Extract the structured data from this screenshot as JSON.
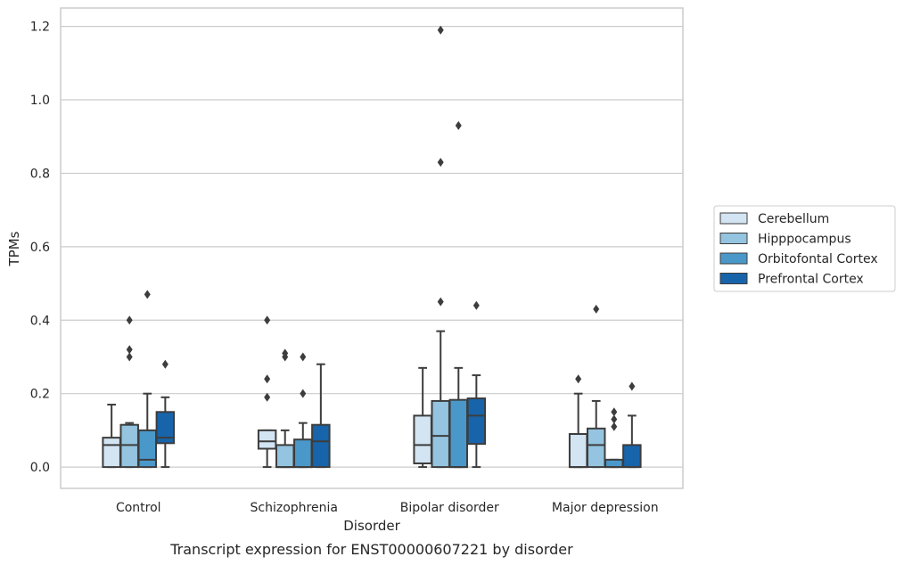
{
  "chart_data": {
    "type": "box",
    "caption": "Transcript expression for ENST00000607221 by disorder",
    "xlabel": "Disorder",
    "ylabel": "TPMs",
    "ylim": [
      -0.058,
      1.25
    ],
    "yticks": [
      0.0,
      0.2,
      0.4,
      0.6,
      0.8,
      1.0,
      1.2
    ],
    "ytick_labels": [
      "0.0",
      "0.2",
      "0.4",
      "0.6",
      "0.8",
      "1.0",
      "1.2"
    ],
    "grid": true,
    "legend_position": "right",
    "categories": [
      "Control",
      "Schizophrenia",
      "Bipolar disorder",
      "Major depression"
    ],
    "series": [
      {
        "name": "Cerebellum",
        "color": "#d3e4f3",
        "boxes": [
          {
            "whislo": 0.0,
            "q1": 0.0,
            "med": 0.06,
            "q3": 0.08,
            "whishi": 0.17,
            "fliers": []
          },
          {
            "whislo": 0.0,
            "q1": 0.05,
            "med": 0.07,
            "q3": 0.1,
            "whishi": 0.1,
            "fliers": [
              0.19,
              0.24,
              0.4
            ]
          },
          {
            "whislo": 0.0,
            "q1": 0.01,
            "med": 0.06,
            "q3": 0.14,
            "whishi": 0.27,
            "fliers": []
          },
          {
            "whislo": 0.0,
            "q1": 0.0,
            "med": 0.0,
            "q3": 0.09,
            "whishi": 0.2,
            "fliers": [
              0.24
            ]
          }
        ]
      },
      {
        "name": "Hipppocampus",
        "color": "#94c4df",
        "boxes": [
          {
            "whislo": 0.0,
            "q1": 0.0,
            "med": 0.06,
            "q3": 0.115,
            "whishi": 0.12,
            "fliers": [
              0.3,
              0.32,
              0.4
            ]
          },
          {
            "whislo": 0.0,
            "q1": 0.0,
            "med": 0.0,
            "q3": 0.06,
            "whishi": 0.1,
            "fliers": [
              0.3,
              0.31
            ]
          },
          {
            "whislo": 0.0,
            "q1": 0.0,
            "med": 0.085,
            "q3": 0.18,
            "whishi": 0.37,
            "fliers": [
              0.45,
              0.83,
              1.19
            ]
          },
          {
            "whislo": 0.0,
            "q1": 0.0,
            "med": 0.06,
            "q3": 0.105,
            "whishi": 0.18,
            "fliers": [
              0.43
            ]
          }
        ]
      },
      {
        "name": "Orbitofontal Cortex",
        "color": "#4a98c9",
        "boxes": [
          {
            "whislo": 0.0,
            "q1": 0.0,
            "med": 0.02,
            "q3": 0.1,
            "whishi": 0.2,
            "fliers": [
              0.47
            ]
          },
          {
            "whislo": 0.0,
            "q1": 0.0,
            "med": 0.0,
            "q3": 0.075,
            "whishi": 0.12,
            "fliers": [
              0.2,
              0.3
            ]
          },
          {
            "whislo": 0.0,
            "q1": 0.0,
            "med": 0.0,
            "q3": 0.183,
            "whishi": 0.27,
            "fliers": [
              0.93
            ]
          },
          {
            "whislo": 0.0,
            "q1": 0.0,
            "med": 0.0,
            "q3": 0.02,
            "whishi": 0.02,
            "fliers": [
              0.11,
              0.13,
              0.15
            ]
          }
        ]
      },
      {
        "name": "Prefrontal Cortex",
        "color": "#1764ab",
        "boxes": [
          {
            "whislo": 0.0,
            "q1": 0.065,
            "med": 0.08,
            "q3": 0.15,
            "whishi": 0.19,
            "fliers": [
              0.28
            ]
          },
          {
            "whislo": 0.0,
            "q1": 0.0,
            "med": 0.07,
            "q3": 0.115,
            "whishi": 0.28,
            "fliers": []
          },
          {
            "whislo": 0.0,
            "q1": 0.063,
            "med": 0.14,
            "q3": 0.187,
            "whishi": 0.25,
            "fliers": [
              0.44
            ]
          },
          {
            "whislo": 0.0,
            "q1": 0.0,
            "med": 0.0,
            "q3": 0.06,
            "whishi": 0.14,
            "fliers": [
              0.22
            ]
          }
        ]
      }
    ]
  }
}
